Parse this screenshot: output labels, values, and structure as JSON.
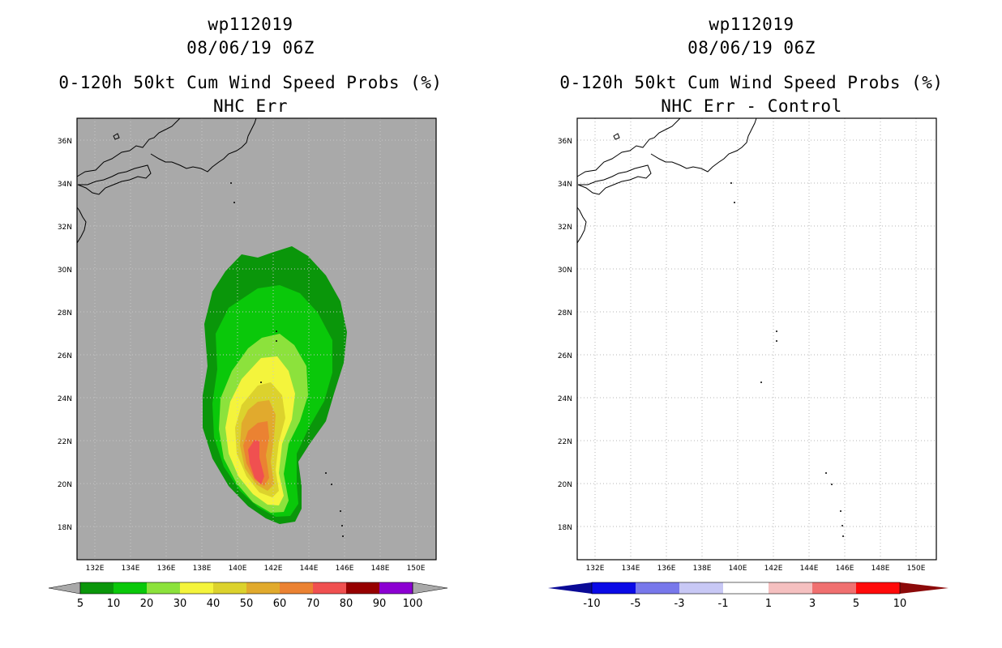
{
  "colors": {
    "land_bg": "#a9a9a9",
    "p5": "#0a960a",
    "p10": "#0ac80a",
    "p20": "#8ce23c",
    "p30": "#f4f43c",
    "p40": "#dcd22d",
    "p50": "#e1aa2d",
    "p60": "#eb8232",
    "p70": "#f05050",
    "p80": "#960000",
    "p90": "#960000",
    "p100": "#8c00d2",
    "d_neg10": "#0a0a96",
    "d_neg5": "#0a0ae6",
    "d_neg3": "#7878eb",
    "d_neg1": "#c8c8f5",
    "d_0": "#ffffff",
    "d_pos1": "#f5c0c0",
    "d_pos3": "#f07070",
    "d_pos5": "#ff0a0a",
    "d_pos10": "#8c0a0a"
  },
  "panels": [
    {
      "id": "left",
      "storm_id": "wp112019",
      "datetime": "08/06/19 06Z",
      "product": "0-120h 50kt Cum Wind Speed Probs (%)",
      "subtitle": "NHC Err",
      "lat_labels": [
        "36N",
        "34N",
        "32N",
        "30N",
        "28N",
        "26N",
        "24N",
        "22N",
        "20N",
        "18N"
      ],
      "lon_labels": [
        "132E",
        "134E",
        "136E",
        "138E",
        "140E",
        "142E",
        "144E",
        "146E",
        "148E",
        "150E"
      ],
      "colorbar_labels": [
        "5",
        "10",
        "20",
        "30",
        "40",
        "50",
        "60",
        "70",
        "80",
        "90",
        "100"
      ]
    },
    {
      "id": "right",
      "storm_id": "wp112019",
      "datetime": "08/06/19 06Z",
      "product": "0-120h 50kt Cum Wind Speed Probs (%)",
      "subtitle": "NHC Err - Control",
      "lat_labels": [
        "36N",
        "34N",
        "32N",
        "30N",
        "28N",
        "26N",
        "24N",
        "22N",
        "20N",
        "18N"
      ],
      "lon_labels": [
        "132E",
        "134E",
        "136E",
        "138E",
        "140E",
        "142E",
        "144E",
        "146E",
        "148E",
        "150E"
      ],
      "colorbar_labels": [
        "-10",
        "-5",
        "-3",
        "-1",
        "1",
        "3",
        "5",
        "10"
      ]
    }
  ]
}
